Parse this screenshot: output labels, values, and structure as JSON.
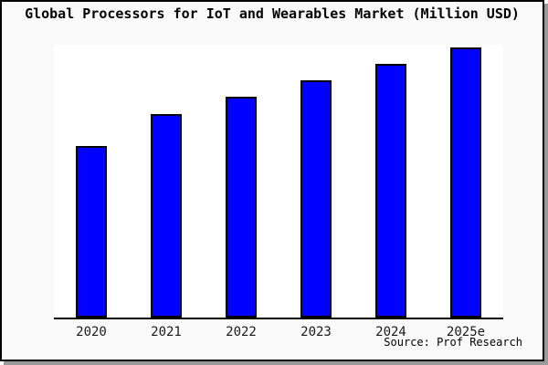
{
  "window": {
    "background": "#fafafa",
    "border_color": "#000000",
    "shadow_color": "#9a9a9a",
    "plot_background": "#ffffff"
  },
  "title": "Global Processors for IoT and Wearables Market (Million USD)",
  "source": "Source: Prof Research",
  "chart_data": {
    "type": "bar",
    "title": "Global Processors for IoT and Wearables Market (Million USD)",
    "categories": [
      "2020",
      "2021",
      "2022",
      "2023",
      "2024",
      "2025e"
    ],
    "values": [
      63.5,
      75.4,
      81.7,
      88,
      94,
      100
    ],
    "units": "relative index (y-axis has no tick labels; tallest bar = 100)",
    "xlabel": "",
    "ylabel": "",
    "ylim": [
      0,
      101
    ],
    "grid": false,
    "legend": false,
    "y_axis_visible": false,
    "bar_color": "#0000ff",
    "bar_border_color": "#000000",
    "annotation": "Source: Prof Research"
  }
}
